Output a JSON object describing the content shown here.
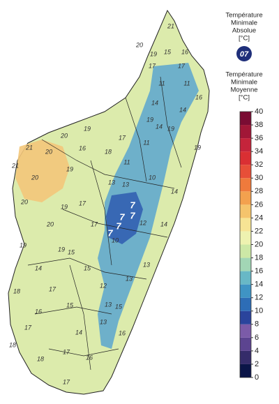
{
  "legend": {
    "absolute_title": [
      "Température",
      "Minimale",
      "Absolue",
      "[°C]"
    ],
    "absolute_value": "07",
    "absolute_color": "#1f2f7a",
    "mean_title": [
      "Température",
      "Minimale",
      "Moyenne",
      "[°C]"
    ]
  },
  "colorbar": {
    "ticks": [
      0,
      2,
      4,
      6,
      8,
      10,
      12,
      14,
      16,
      18,
      20,
      22,
      24,
      26,
      28,
      30,
      32,
      34,
      36,
      38,
      40
    ],
    "colors": [
      "#0b1548",
      "#352c6a",
      "#5c4490",
      "#7b5ba8",
      "#2a449c",
      "#2d6db6",
      "#3f94c4",
      "#68b8c6",
      "#a2d6b5",
      "#cde8a6",
      "#eef2b0",
      "#f7e494",
      "#f5c46c",
      "#f3a14e",
      "#ef7a3c",
      "#e74f38",
      "#da2f33",
      "#c5243b",
      "#a11737",
      "#7a0c33"
    ]
  },
  "map": {
    "land_color": "#dcebac",
    "highland_color": "#5aa6cf",
    "core_color": "#2f5cb0",
    "west_color": "#f3c77a",
    "labels": [
      21,
      20,
      19,
      15,
      16,
      17,
      17,
      11,
      11,
      14,
      16,
      14,
      19,
      19,
      20,
      19,
      17,
      20,
      11,
      14,
      19,
      21,
      16,
      18,
      11,
      21,
      19,
      20,
      13,
      10,
      14,
      17,
      19,
      13,
      20,
      20,
      17,
      15,
      19,
      10,
      7,
      7,
      7,
      7,
      7,
      14,
      12,
      13,
      14,
      15,
      19,
      18,
      17,
      16,
      15,
      17,
      13,
      15,
      14,
      16,
      13,
      18,
      17,
      16,
      18,
      17,
      13,
      12
    ]
  }
}
